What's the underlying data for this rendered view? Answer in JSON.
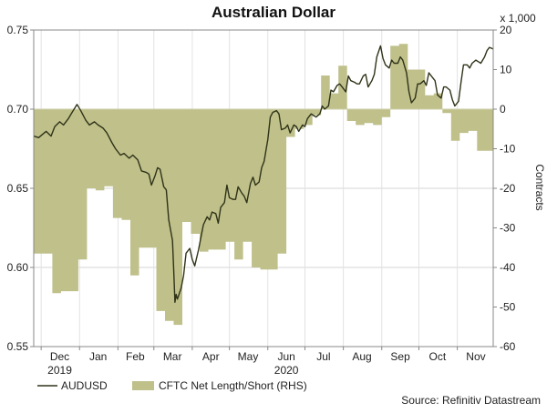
{
  "chart_data": {
    "type": "area+line",
    "title": "Australian Dollar",
    "ylabel_right": "Contracts",
    "right_multiplier_label": "x 1,000",
    "source": "Source: Refinitiv Datastream",
    "left_axis": {
      "range": [
        0.55,
        0.75
      ],
      "ticks": [
        "0.55",
        "0.60",
        "0.65",
        "0.70",
        "0.75"
      ]
    },
    "right_axis": {
      "range": [
        -60,
        20
      ],
      "ticks": [
        "-60",
        "-50",
        "-40",
        "-30",
        "-20",
        "-10",
        "0",
        "10",
        "20"
      ]
    },
    "x_axis": {
      "start": "2019-11-25",
      "end": "2020-11-30",
      "month_labels": [
        {
          "label": "Dec",
          "date": "2019-12-16"
        },
        {
          "label": "Jan",
          "date": "2020-01-16"
        },
        {
          "label": "Feb",
          "date": "2020-02-15"
        },
        {
          "label": "Mar",
          "date": "2020-03-16"
        },
        {
          "label": "Apr",
          "date": "2020-04-16"
        },
        {
          "label": "May",
          "date": "2020-05-16"
        },
        {
          "label": "Jun",
          "date": "2020-06-16"
        },
        {
          "label": "Jul",
          "date": "2020-07-16"
        },
        {
          "label": "Aug",
          "date": "2020-08-16"
        },
        {
          "label": "Sep",
          "date": "2020-09-16"
        },
        {
          "label": "Oct",
          "date": "2020-10-16"
        },
        {
          "label": "Nov",
          "date": "2020-11-16"
        }
      ],
      "year_labels": [
        {
          "label": "2019",
          "date": "2019-12-16"
        },
        {
          "label": "2020",
          "date": "2020-06-16"
        }
      ]
    },
    "series": [
      {
        "name": "AUDUSD",
        "axis": "left",
        "color": "#2f3318",
        "points": [
          [
            "2019-11-25",
            0.683
          ],
          [
            "2019-11-29",
            0.682
          ],
          [
            "2019-12-02",
            0.684
          ],
          [
            "2019-12-05",
            0.686
          ],
          [
            "2019-12-09",
            0.683
          ],
          [
            "2019-12-12",
            0.689
          ],
          [
            "2019-12-16",
            0.692
          ],
          [
            "2019-12-19",
            0.69
          ],
          [
            "2019-12-23",
            0.694
          ],
          [
            "2019-12-26",
            0.698
          ],
          [
            "2019-12-30",
            0.703
          ],
          [
            "2020-01-02",
            0.699
          ],
          [
            "2020-01-06",
            0.693
          ],
          [
            "2020-01-09",
            0.69
          ],
          [
            "2020-01-13",
            0.692
          ],
          [
            "2020-01-16",
            0.69
          ],
          [
            "2020-01-20",
            0.688
          ],
          [
            "2020-01-23",
            0.685
          ],
          [
            "2020-01-27",
            0.679
          ],
          [
            "2020-01-30",
            0.675
          ],
          [
            "2020-02-03",
            0.671
          ],
          [
            "2020-02-06",
            0.672
          ],
          [
            "2020-02-10",
            0.669
          ],
          [
            "2020-02-13",
            0.671
          ],
          [
            "2020-02-17",
            0.668
          ],
          [
            "2020-02-20",
            0.661
          ],
          [
            "2020-02-24",
            0.66
          ],
          [
            "2020-02-26",
            0.659
          ],
          [
            "2020-02-28",
            0.652
          ],
          [
            "2020-03-02",
            0.658
          ],
          [
            "2020-03-04",
            0.663
          ],
          [
            "2020-03-06",
            0.662
          ],
          [
            "2020-03-09",
            0.651
          ],
          [
            "2020-03-11",
            0.649
          ],
          [
            "2020-03-13",
            0.63
          ],
          [
            "2020-03-16",
            0.617
          ],
          [
            "2020-03-17",
            0.599
          ],
          [
            "2020-03-18",
            0.578
          ],
          [
            "2020-03-19",
            0.583
          ],
          [
            "2020-03-20",
            0.58
          ],
          [
            "2020-03-23",
            0.587
          ],
          [
            "2020-03-25",
            0.595
          ],
          [
            "2020-03-27",
            0.609
          ],
          [
            "2020-03-30",
            0.612
          ],
          [
            "2020-04-01",
            0.605
          ],
          [
            "2020-04-03",
            0.601
          ],
          [
            "2020-04-06",
            0.611
          ],
          [
            "2020-04-08",
            0.619
          ],
          [
            "2020-04-10",
            0.627
          ],
          [
            "2020-04-13",
            0.632
          ],
          [
            "2020-04-15",
            0.63
          ],
          [
            "2020-04-17",
            0.635
          ],
          [
            "2020-04-20",
            0.634
          ],
          [
            "2020-04-22",
            0.628
          ],
          [
            "2020-04-24",
            0.638
          ],
          [
            "2020-04-27",
            0.641
          ],
          [
            "2020-04-29",
            0.652
          ],
          [
            "2020-05-01",
            0.644
          ],
          [
            "2020-05-04",
            0.643
          ],
          [
            "2020-05-06",
            0.643
          ],
          [
            "2020-05-08",
            0.651
          ],
          [
            "2020-05-11",
            0.647
          ],
          [
            "2020-05-13",
            0.645
          ],
          [
            "2020-05-15",
            0.641
          ],
          [
            "2020-05-18",
            0.653
          ],
          [
            "2020-05-20",
            0.657
          ],
          [
            "2020-05-22",
            0.652
          ],
          [
            "2020-05-25",
            0.654
          ],
          [
            "2020-05-27",
            0.663
          ],
          [
            "2020-05-29",
            0.667
          ],
          [
            "2020-06-01",
            0.681
          ],
          [
            "2020-06-03",
            0.695
          ],
          [
            "2020-06-05",
            0.698
          ],
          [
            "2020-06-08",
            0.699
          ],
          [
            "2020-06-10",
            0.697
          ],
          [
            "2020-06-12",
            0.687
          ],
          [
            "2020-06-15",
            0.688
          ],
          [
            "2020-06-17",
            0.69
          ],
          [
            "2020-06-19",
            0.685
          ],
          [
            "2020-06-22",
            0.69
          ],
          [
            "2020-06-24",
            0.689
          ],
          [
            "2020-06-26",
            0.686
          ],
          [
            "2020-06-29",
            0.69
          ],
          [
            "2020-07-01",
            0.689
          ],
          [
            "2020-07-03",
            0.694
          ],
          [
            "2020-07-06",
            0.697
          ],
          [
            "2020-07-08",
            0.696
          ],
          [
            "2020-07-10",
            0.695
          ],
          [
            "2020-07-13",
            0.697
          ],
          [
            "2020-07-15",
            0.702
          ],
          [
            "2020-07-17",
            0.7
          ],
          [
            "2020-07-20",
            0.702
          ],
          [
            "2020-07-22",
            0.712
          ],
          [
            "2020-07-24",
            0.711
          ],
          [
            "2020-07-27",
            0.715
          ],
          [
            "2020-07-29",
            0.716
          ],
          [
            "2020-07-31",
            0.714
          ],
          [
            "2020-08-03",
            0.711
          ],
          [
            "2020-08-05",
            0.721
          ],
          [
            "2020-08-07",
            0.718
          ],
          [
            "2020-08-10",
            0.717
          ],
          [
            "2020-08-12",
            0.716
          ],
          [
            "2020-08-14",
            0.716
          ],
          [
            "2020-08-17",
            0.721
          ],
          [
            "2020-08-19",
            0.722
          ],
          [
            "2020-08-21",
            0.714
          ],
          [
            "2020-08-24",
            0.718
          ],
          [
            "2020-08-26",
            0.722
          ],
          [
            "2020-08-28",
            0.733
          ],
          [
            "2020-08-31",
            0.74
          ],
          [
            "2020-09-02",
            0.732
          ],
          [
            "2020-09-04",
            0.728
          ],
          [
            "2020-09-07",
            0.726
          ],
          [
            "2020-09-09",
            0.731
          ],
          [
            "2020-09-11",
            0.729
          ],
          [
            "2020-09-14",
            0.729
          ],
          [
            "2020-09-16",
            0.733
          ],
          [
            "2020-09-18",
            0.731
          ],
          [
            "2020-09-21",
            0.723
          ],
          [
            "2020-09-23",
            0.711
          ],
          [
            "2020-09-25",
            0.704
          ],
          [
            "2020-09-28",
            0.707
          ],
          [
            "2020-09-30",
            0.716
          ],
          [
            "2020-10-02",
            0.716
          ],
          [
            "2020-10-05",
            0.718
          ],
          [
            "2020-10-07",
            0.715
          ],
          [
            "2020-10-09",
            0.723
          ],
          [
            "2020-10-12",
            0.72
          ],
          [
            "2020-10-14",
            0.718
          ],
          [
            "2020-10-16",
            0.709
          ],
          [
            "2020-10-19",
            0.707
          ],
          [
            "2020-10-21",
            0.714
          ],
          [
            "2020-10-23",
            0.714
          ],
          [
            "2020-10-26",
            0.712
          ],
          [
            "2020-10-28",
            0.706
          ],
          [
            "2020-10-30",
            0.702
          ],
          [
            "2020-11-02",
            0.705
          ],
          [
            "2020-11-04",
            0.717
          ],
          [
            "2020-11-06",
            0.728
          ],
          [
            "2020-11-09",
            0.728
          ],
          [
            "2020-11-11",
            0.726
          ],
          [
            "2020-11-13",
            0.729
          ],
          [
            "2020-11-16",
            0.731
          ],
          [
            "2020-11-18",
            0.73
          ],
          [
            "2020-11-20",
            0.729
          ],
          [
            "2020-11-23",
            0.733
          ],
          [
            "2020-11-25",
            0.737
          ],
          [
            "2020-11-27",
            0.739
          ],
          [
            "2020-11-30",
            0.738
          ]
        ]
      },
      {
        "name": "CFTC Net Length/Short (RHS)",
        "axis": "right",
        "color": "#bfc08a",
        "points": [
          [
            "2019-11-25",
            -36.5
          ],
          [
            "2019-12-03",
            -36.5
          ],
          [
            "2019-12-10",
            -46.5
          ],
          [
            "2019-12-17",
            -46
          ],
          [
            "2019-12-24",
            -46
          ],
          [
            "2019-12-31",
            -38
          ],
          [
            "2020-01-07",
            -20
          ],
          [
            "2020-01-14",
            -20.5
          ],
          [
            "2020-01-21",
            -19.5
          ],
          [
            "2020-01-28",
            -27.5
          ],
          [
            "2020-02-04",
            -28
          ],
          [
            "2020-02-11",
            -42
          ],
          [
            "2020-02-18",
            -35
          ],
          [
            "2020-02-25",
            -35
          ],
          [
            "2020-03-03",
            -51
          ],
          [
            "2020-03-10",
            -53.5
          ],
          [
            "2020-03-17",
            -54.5
          ],
          [
            "2020-03-24",
            -28.5
          ],
          [
            "2020-03-31",
            -31.5
          ],
          [
            "2020-04-07",
            -36
          ],
          [
            "2020-04-14",
            -35.5
          ],
          [
            "2020-04-21",
            -35.5
          ],
          [
            "2020-04-28",
            -33.5
          ],
          [
            "2020-05-05",
            -38
          ],
          [
            "2020-05-12",
            -33.5
          ],
          [
            "2020-05-19",
            -40
          ],
          [
            "2020-05-26",
            -40.5
          ],
          [
            "2020-06-02",
            -40.5
          ],
          [
            "2020-06-09",
            -36.5
          ],
          [
            "2020-06-16",
            -7
          ],
          [
            "2020-06-23",
            -5
          ],
          [
            "2020-06-30",
            -4
          ],
          [
            "2020-07-07",
            -1.5
          ],
          [
            "2020-07-14",
            8.5
          ],
          [
            "2020-07-21",
            4
          ],
          [
            "2020-07-28",
            11
          ],
          [
            "2020-08-04",
            -3
          ],
          [
            "2020-08-11",
            -4
          ],
          [
            "2020-08-18",
            -3.5
          ],
          [
            "2020-08-25",
            -4
          ],
          [
            "2020-09-01",
            -2
          ],
          [
            "2020-09-08",
            16
          ],
          [
            "2020-09-15",
            16.5
          ],
          [
            "2020-09-22",
            10
          ],
          [
            "2020-09-29",
            10
          ],
          [
            "2020-10-06",
            3.5
          ],
          [
            "2020-10-13",
            4
          ],
          [
            "2020-10-20",
            -1
          ],
          [
            "2020-10-27",
            -8
          ],
          [
            "2020-11-03",
            -6
          ],
          [
            "2020-11-10",
            -5.5
          ],
          [
            "2020-11-17",
            -10.5
          ],
          [
            "2020-11-24",
            -10.5
          ]
        ]
      }
    ],
    "legend": [
      {
        "label": "AUDUSD",
        "swatch": "line"
      },
      {
        "label": "CFTC Net Length/Short (RHS)",
        "swatch": "area"
      }
    ],
    "grid": true,
    "legend_position": "bottom-left"
  }
}
